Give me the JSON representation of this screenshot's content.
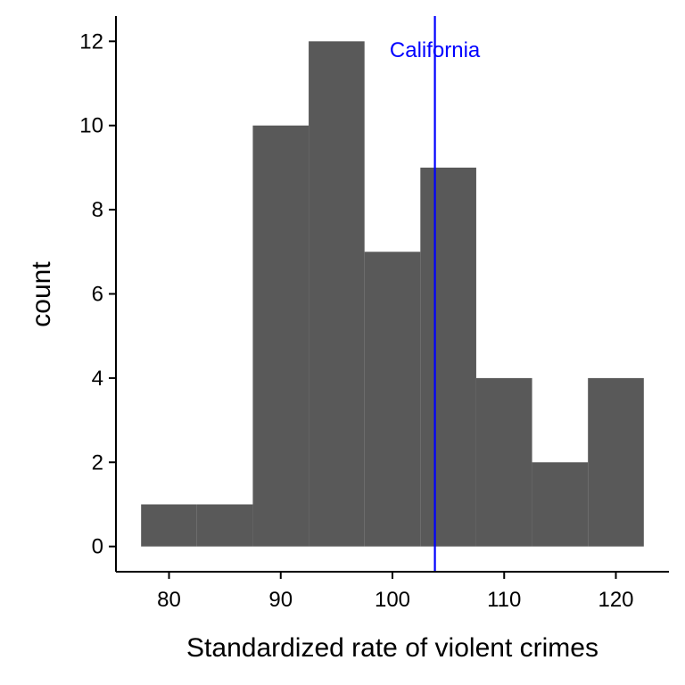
{
  "chart_data": {
    "type": "bar",
    "title": "",
    "xlabel": "Standardized rate of violent crimes",
    "ylabel": "count",
    "xlim": [
      75.25,
      124.75
    ],
    "ylim": [
      -0.6,
      12.6
    ],
    "x_ticks": [
      80,
      90,
      100,
      110,
      120
    ],
    "y_ticks": [
      0,
      2,
      4,
      6,
      8,
      10,
      12
    ],
    "bins": [
      {
        "x0": 77.5,
        "x1": 82.5,
        "count": 1
      },
      {
        "x0": 82.5,
        "x1": 87.5,
        "count": 1
      },
      {
        "x0": 87.5,
        "x1": 92.5,
        "count": 10
      },
      {
        "x0": 92.5,
        "x1": 97.5,
        "count": 12
      },
      {
        "x0": 97.5,
        "x1": 102.5,
        "count": 7
      },
      {
        "x0": 102.5,
        "x1": 107.5,
        "count": 9
      },
      {
        "x0": 107.5,
        "x1": 112.5,
        "count": 4
      },
      {
        "x0": 112.5,
        "x1": 117.5,
        "count": 2
      },
      {
        "x0": 117.5,
        "x1": 122.5,
        "count": 4
      }
    ],
    "bar_color": "#595959",
    "reference_line": {
      "x": 103.8,
      "label": "California",
      "color": "#0000ff"
    },
    "grid": false,
    "legend": "none"
  }
}
